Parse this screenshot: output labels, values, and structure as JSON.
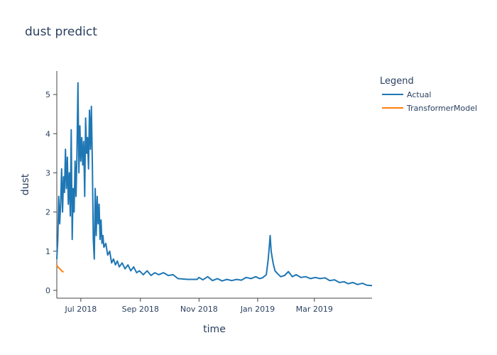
{
  "chart_data": {
    "type": "line",
    "title": "dust predict",
    "xlabel": "time",
    "ylabel": "dust",
    "x_ticks": [
      {
        "date": "2018-07-01",
        "label": "Jul 2018"
      },
      {
        "date": "2018-09-01",
        "label": "Sep 2018"
      },
      {
        "date": "2018-11-01",
        "label": "Nov 2018"
      },
      {
        "date": "2019-01-01",
        "label": "Jan 2019"
      },
      {
        "date": "2019-03-01",
        "label": "Mar 2019"
      }
    ],
    "y_ticks": [
      0,
      1,
      2,
      3,
      4,
      5
    ],
    "xlim": [
      "2018-06-06",
      "2019-04-30"
    ],
    "ylim": [
      -0.2,
      5.6
    ],
    "legend_title": "Legend",
    "legend_position": "top-right",
    "grid": false,
    "series": [
      {
        "name": "Actual",
        "color": "#1f77b4",
        "points": [
          [
            "2018-06-06",
            0.8
          ],
          [
            "2018-06-07",
            1.3
          ],
          [
            "2018-06-08",
            2.4
          ],
          [
            "2018-06-09",
            1.7
          ],
          [
            "2018-06-10",
            2.2
          ],
          [
            "2018-06-11",
            3.1
          ],
          [
            "2018-06-12",
            2.0
          ],
          [
            "2018-06-13",
            2.9
          ],
          [
            "2018-06-14",
            2.5
          ],
          [
            "2018-06-15",
            3.6
          ],
          [
            "2018-06-16",
            2.6
          ],
          [
            "2018-06-17",
            3.4
          ],
          [
            "2018-06-18",
            2.2
          ],
          [
            "2018-06-19",
            3.0
          ],
          [
            "2018-06-20",
            1.9
          ],
          [
            "2018-06-21",
            4.1
          ],
          [
            "2018-06-22",
            1.3
          ],
          [
            "2018-06-23",
            2.6
          ],
          [
            "2018-06-24",
            2.0
          ],
          [
            "2018-06-25",
            3.3
          ],
          [
            "2018-06-26",
            2.4
          ],
          [
            "2018-06-27",
            3.5
          ],
          [
            "2018-06-28",
            5.3
          ],
          [
            "2018-06-29",
            3.0
          ],
          [
            "2018-06-30",
            4.2
          ],
          [
            "2018-07-01",
            3.3
          ],
          [
            "2018-07-02",
            3.9
          ],
          [
            "2018-07-03",
            3.2
          ],
          [
            "2018-07-04",
            3.8
          ],
          [
            "2018-07-05",
            2.4
          ],
          [
            "2018-07-06",
            4.4
          ],
          [
            "2018-07-07",
            3.5
          ],
          [
            "2018-07-08",
            3.9
          ],
          [
            "2018-07-09",
            3.1
          ],
          [
            "2018-07-10",
            4.6
          ],
          [
            "2018-07-11",
            3.6
          ],
          [
            "2018-07-12",
            4.7
          ],
          [
            "2018-07-13",
            3.2
          ],
          [
            "2018-07-14",
            1.3
          ],
          [
            "2018-07-15",
            0.8
          ],
          [
            "2018-07-16",
            2.6
          ],
          [
            "2018-07-17",
            1.4
          ],
          [
            "2018-07-18",
            2.4
          ],
          [
            "2018-07-19",
            1.7
          ],
          [
            "2018-07-20",
            2.2
          ],
          [
            "2018-07-21",
            1.3
          ],
          [
            "2018-07-22",
            1.8
          ],
          [
            "2018-07-23",
            1.2
          ],
          [
            "2018-07-24",
            1.4
          ],
          [
            "2018-07-25",
            1.1
          ],
          [
            "2018-07-27",
            1.2
          ],
          [
            "2018-07-29",
            0.9
          ],
          [
            "2018-07-31",
            1.0
          ],
          [
            "2018-08-02",
            0.7
          ],
          [
            "2018-08-04",
            0.8
          ],
          [
            "2018-08-06",
            0.65
          ],
          [
            "2018-08-08",
            0.75
          ],
          [
            "2018-08-10",
            0.6
          ],
          [
            "2018-08-13",
            0.7
          ],
          [
            "2018-08-16",
            0.55
          ],
          [
            "2018-08-19",
            0.65
          ],
          [
            "2018-08-22",
            0.5
          ],
          [
            "2018-08-25",
            0.6
          ],
          [
            "2018-08-28",
            0.45
          ],
          [
            "2018-08-31",
            0.5
          ],
          [
            "2018-09-04",
            0.4
          ],
          [
            "2018-09-08",
            0.5
          ],
          [
            "2018-09-12",
            0.38
          ],
          [
            "2018-09-16",
            0.45
          ],
          [
            "2018-09-20",
            0.4
          ],
          [
            "2018-09-25",
            0.45
          ],
          [
            "2018-09-30",
            0.38
          ],
          [
            "2018-10-05",
            0.4
          ],
          [
            "2018-10-10",
            0.3
          ],
          [
            "2018-10-20",
            0.28
          ],
          [
            "2018-10-30",
            0.28
          ],
          [
            "2018-11-01",
            0.33
          ],
          [
            "2018-11-05",
            0.27
          ],
          [
            "2018-11-10",
            0.35
          ],
          [
            "2018-11-15",
            0.25
          ],
          [
            "2018-11-20",
            0.3
          ],
          [
            "2018-11-25",
            0.24
          ],
          [
            "2018-11-30",
            0.28
          ],
          [
            "2018-12-05",
            0.25
          ],
          [
            "2018-12-10",
            0.28
          ],
          [
            "2018-12-15",
            0.26
          ],
          [
            "2018-12-20",
            0.33
          ],
          [
            "2018-12-25",
            0.3
          ],
          [
            "2018-12-30",
            0.35
          ],
          [
            "2019-01-03",
            0.3
          ],
          [
            "2019-01-06",
            0.32
          ],
          [
            "2019-01-10",
            0.4
          ],
          [
            "2019-01-12",
            0.8
          ],
          [
            "2019-01-13",
            1.1
          ],
          [
            "2019-01-14",
            1.4
          ],
          [
            "2019-01-15",
            1.0
          ],
          [
            "2019-01-17",
            0.7
          ],
          [
            "2019-01-19",
            0.5
          ],
          [
            "2019-01-22",
            0.42
          ],
          [
            "2019-01-25",
            0.35
          ],
          [
            "2019-01-29",
            0.38
          ],
          [
            "2019-02-02",
            0.48
          ],
          [
            "2019-02-06",
            0.35
          ],
          [
            "2019-02-10",
            0.4
          ],
          [
            "2019-02-15",
            0.33
          ],
          [
            "2019-02-20",
            0.35
          ],
          [
            "2019-02-25",
            0.3
          ],
          [
            "2019-03-02",
            0.33
          ],
          [
            "2019-03-07",
            0.3
          ],
          [
            "2019-03-12",
            0.32
          ],
          [
            "2019-03-17",
            0.25
          ],
          [
            "2019-03-22",
            0.27
          ],
          [
            "2019-03-27",
            0.2
          ],
          [
            "2019-04-01",
            0.22
          ],
          [
            "2019-04-05",
            0.17
          ],
          [
            "2019-04-10",
            0.2
          ],
          [
            "2019-04-15",
            0.15
          ],
          [
            "2019-04-20",
            0.18
          ],
          [
            "2019-04-25",
            0.13
          ],
          [
            "2019-04-30",
            0.12
          ]
        ]
      },
      {
        "name": "TransformerModel",
        "color": "#ff7f0e",
        "points": [
          [
            "2018-06-06",
            0.65
          ],
          [
            "2018-06-07",
            0.6
          ],
          [
            "2018-06-08",
            0.58
          ],
          [
            "2018-06-09",
            0.55
          ],
          [
            "2018-06-10",
            0.53
          ],
          [
            "2018-06-11",
            0.5
          ],
          [
            "2018-06-12",
            0.48
          ],
          [
            "2018-06-13",
            0.47
          ]
        ]
      }
    ]
  }
}
